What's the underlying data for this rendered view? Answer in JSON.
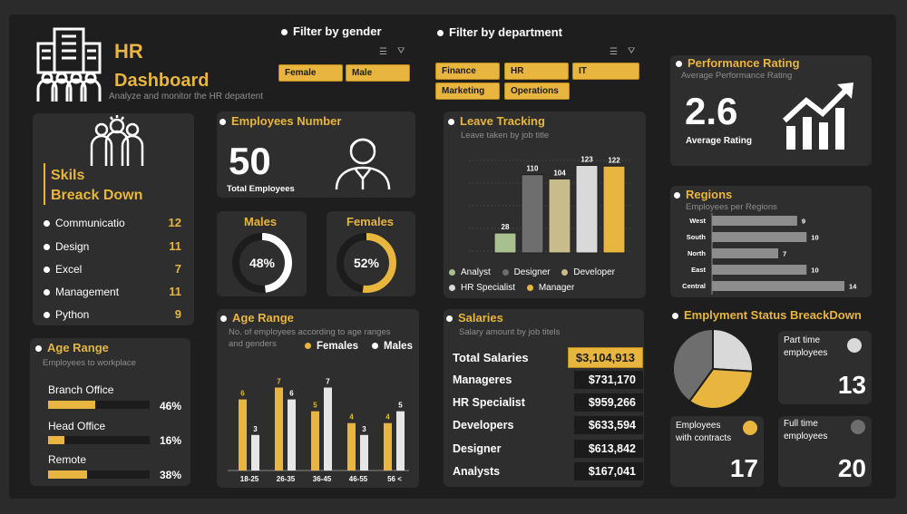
{
  "header": {
    "title_line1": "HR",
    "title_line2": "Dashboard",
    "subtitle": "Analyze and monitor the HR departent"
  },
  "filters": {
    "gender_label": "Filter by gender",
    "gender_options": [
      "Female",
      "Male"
    ],
    "department_label": "Filter by department",
    "department_options": [
      "Finance",
      "HR",
      "IT",
      "Marketing",
      "Operations"
    ]
  },
  "skills": {
    "title_line1": "Skils",
    "title_line2": "Breack Down",
    "items": [
      {
        "label": "Communicatio",
        "value": "12"
      },
      {
        "label": "Design",
        "value": "11"
      },
      {
        "label": "Excel",
        "value": "7"
      },
      {
        "label": "Management",
        "value": "11"
      },
      {
        "label": "Python",
        "value": "9"
      }
    ]
  },
  "employees": {
    "title": "Employees Number",
    "value": "50",
    "label": "Total Employees"
  },
  "males": {
    "title": "Males",
    "percent_label": "48%",
    "fraction": 0.48
  },
  "females": {
    "title": "Females",
    "percent_label": "52%",
    "fraction": 0.52
  },
  "workplace": {
    "title": "Age Range",
    "subtitle": "Employees to workplace",
    "items": [
      {
        "label": "Branch Office",
        "percent_label": "46%",
        "fraction": 0.46
      },
      {
        "label": "Head Office",
        "percent_label": "16%",
        "fraction": 0.16
      },
      {
        "label": "Remote",
        "percent_label": "38%",
        "fraction": 0.38
      }
    ]
  },
  "leave": {
    "title": "Leave Tracking",
    "subtitle": "Leave taken by job title",
    "legend": [
      "Analyst",
      "Designer",
      "Developer",
      "HR Specialist",
      "Manager"
    ]
  },
  "age_range": {
    "title": "Age Range",
    "subtitle_line1": "No. of employees according to age ranges",
    "subtitle_line2": "and genders",
    "legend_females": "Females",
    "legend_males": "Males"
  },
  "salaries": {
    "title": "Salaries",
    "subtitle": "Salary amount by job titels",
    "total_label": "Total Salaries",
    "total_value": "$3,104,913",
    "rows": [
      {
        "label": "Manageres",
        "value": "$731,170"
      },
      {
        "label": "HR Specialist",
        "value": "$959,266"
      },
      {
        "label": "Developers",
        "value": "$633,594"
      },
      {
        "label": "Designer",
        "value": "$613,842"
      },
      {
        "label": "Analysts",
        "value": "$167,041"
      }
    ]
  },
  "performance": {
    "title": "Performance Rating",
    "subtitle": "Average Performance Rating",
    "value": "2.6",
    "label": "Average Rating"
  },
  "regions": {
    "title": "Regions",
    "subtitle": "Employees per Regions"
  },
  "employment": {
    "title": "Emplyment Status BreackDown",
    "part_time_label_1": "Part time",
    "part_time_label_2": "employees",
    "part_time_value": "13",
    "contract_label_1": "Employees",
    "contract_label_2": "with contracts",
    "contract_value": "17",
    "full_time_label_1": "Full time",
    "full_time_label_2": "employees",
    "full_time_value": "20"
  },
  "colors": {
    "accent": "#e8b53e",
    "card": "#2e2e2e",
    "background": "#1e1e1e",
    "analyst": "#a8c08e",
    "designer": "#6e6e6e",
    "developer": "#c9bc8c",
    "hr_specialist": "#d9d9d9",
    "manager": "#e8b53e"
  },
  "icons": {
    "logo": "building-people-icon",
    "skills": "team-icon",
    "employees": "people-icon",
    "performance": "growth-chart-icon",
    "filter": "filter-clear-icon"
  },
  "chart_data": [
    {
      "type": "bar",
      "name": "leave_tracking",
      "categories": [
        "Analyst",
        "Designer",
        "Developer",
        "HR Specialist",
        "Manager"
      ],
      "values": [
        28,
        110,
        104,
        123,
        122
      ]
    },
    {
      "type": "bar",
      "name": "age_range",
      "categories": [
        "18-25",
        "26-35",
        "36-45",
        "46-55",
        "56 <"
      ],
      "series": [
        {
          "name": "Females",
          "values": [
            6,
            7,
            5,
            4,
            4
          ]
        },
        {
          "name": "Males",
          "values": [
            3,
            6,
            7,
            3,
            5
          ]
        }
      ]
    },
    {
      "type": "bar",
      "name": "regions",
      "categories": [
        "West",
        "South",
        "North",
        "East",
        "Central"
      ],
      "values": [
        9,
        10,
        7,
        10,
        14
      ]
    },
    {
      "type": "pie",
      "name": "employment_status",
      "categories": [
        "Part time employees",
        "Employees with contracts",
        "Full time employees"
      ],
      "values": [
        13,
        17,
        20
      ]
    }
  ]
}
